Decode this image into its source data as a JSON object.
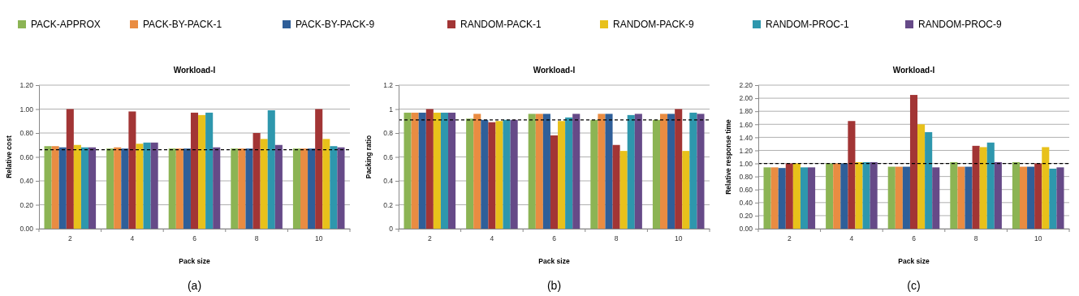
{
  "chart_data": [
    {
      "type": "bar",
      "title": "Workload-I",
      "xlabel": "Pack size",
      "ylabel": "Relative cost",
      "categories": [
        "2",
        "4",
        "6",
        "8",
        "10"
      ],
      "legend": "top",
      "grid": "y",
      "ylim": [
        0,
        1.2
      ],
      "yticks": [
        {
          "value": 0,
          "label": "0.00"
        },
        {
          "value": 0.2,
          "label": "0.20"
        },
        {
          "value": 0.4,
          "label": "0.40"
        },
        {
          "value": 0.6,
          "label": "0.60"
        },
        {
          "value": 0.8,
          "label": "0.80"
        },
        {
          "value": 1,
          "label": "1.00"
        },
        {
          "value": 1.2,
          "label": "1.20"
        }
      ],
      "ref_lines": [
        {
          "axis": "y",
          "value": 0.66,
          "color": "#000000",
          "line_style": "dashed"
        }
      ],
      "annotations": [
        "(a)"
      ],
      "series": [
        {
          "name": "PACK-APPROX",
          "color": "#8cb454",
          "values": [
            0.69,
            0.67,
            0.67,
            0.67,
            0.67
          ]
        },
        {
          "name": "PACK-BY-PACK-1",
          "color": "#e98c42",
          "values": [
            0.69,
            0.68,
            0.67,
            0.67,
            0.67
          ]
        },
        {
          "name": "PACK-BY-PACK-9",
          "color": "#2f5f99",
          "values": [
            0.68,
            0.67,
            0.67,
            0.67,
            0.67
          ]
        },
        {
          "name": "RANDOM-PACK-1",
          "color": "#a23535",
          "values": [
            1.0,
            0.98,
            0.97,
            0.8,
            1.0
          ]
        },
        {
          "name": "RANDOM-PACK-9",
          "color": "#e8c11b",
          "values": [
            0.7,
            0.71,
            0.95,
            0.75,
            0.75
          ]
        },
        {
          "name": "RANDOM-PROC-1",
          "color": "#2e97ad",
          "values": [
            0.68,
            0.72,
            0.97,
            0.99,
            0.69
          ]
        },
        {
          "name": "RANDOM-PROC-9",
          "color": "#664a88",
          "values": [
            0.68,
            0.72,
            0.68,
            0.7,
            0.68
          ]
        }
      ]
    },
    {
      "type": "bar",
      "title": "Workload-I",
      "xlabel": "Pack size",
      "ylabel": "Packing ratio",
      "categories": [
        "2",
        "4",
        "6",
        "8",
        "10"
      ],
      "grid": "y",
      "ylim": [
        0,
        1.2
      ],
      "yticks": [
        0,
        0.2,
        0.4,
        0.6,
        0.8,
        1,
        1.2
      ],
      "ref_lines": [
        {
          "axis": "y",
          "value": 0.91,
          "color": "#000000",
          "line_style": "dashed"
        }
      ],
      "annotations": [
        "(b)"
      ],
      "series": [
        {
          "color": "#8cb454",
          "values": [
            0.97,
            0.92,
            0.96,
            0.91,
            0.91
          ]
        },
        {
          "color": "#e98c42",
          "values": [
            0.97,
            0.96,
            0.96,
            0.96,
            0.96
          ]
        },
        {
          "color": "#2f5f99",
          "values": [
            0.97,
            0.91,
            0.96,
            0.96,
            0.96
          ]
        },
        {
          "color": "#a23535",
          "values": [
            1.0,
            0.89,
            0.78,
            0.7,
            1.0
          ]
        },
        {
          "color": "#e8c11b",
          "values": [
            0.97,
            0.9,
            0.9,
            0.65,
            0.65
          ]
        },
        {
          "color": "#2e97ad",
          "values": [
            0.97,
            0.91,
            0.93,
            0.95,
            0.97
          ]
        },
        {
          "color": "#664a88",
          "values": [
            0.97,
            0.91,
            0.96,
            0.96,
            0.96
          ]
        }
      ]
    },
    {
      "type": "bar",
      "title": "Workload-I",
      "xlabel": "Pack size",
      "ylabel": "Relative response time",
      "categories": [
        "2",
        "4",
        "6",
        "8",
        "10"
      ],
      "grid": "y",
      "ylim": [
        0,
        2.2
      ],
      "yticks": [
        {
          "value": 0,
          "label": "0.00"
        },
        {
          "value": 0.2,
          "label": "0.20"
        },
        {
          "value": 0.4,
          "label": "0.40"
        },
        {
          "value": 0.6,
          "label": "0.60"
        },
        {
          "value": 0.8,
          "label": "0.80"
        },
        {
          "value": 1,
          "label": "1.00"
        },
        {
          "value": 1.2,
          "label": "1.20"
        },
        {
          "value": 1.4,
          "label": "1.40"
        },
        {
          "value": 1.6,
          "label": "1.60"
        },
        {
          "value": 1.8,
          "label": "1.80"
        },
        {
          "value": 2,
          "label": "2.00"
        },
        {
          "value": 2.2,
          "label": "2.20"
        }
      ],
      "ref_lines": [
        {
          "axis": "y",
          "value": 1.0,
          "color": "#000000",
          "line_style": "dashed"
        }
      ],
      "annotations": [
        "(c)"
      ],
      "series": [
        {
          "color": "#8cb454",
          "values": [
            0.94,
            1.0,
            0.95,
            1.02,
            1.02
          ]
        },
        {
          "color": "#e98c42",
          "values": [
            0.94,
            1.0,
            0.95,
            0.95,
            0.95
          ]
        },
        {
          "color": "#2f5f99",
          "values": [
            0.93,
            1.0,
            0.95,
            0.95,
            0.95
          ]
        },
        {
          "color": "#a23535",
          "values": [
            1.0,
            1.65,
            2.05,
            1.27,
            1.0
          ]
        },
        {
          "color": "#e8c11b",
          "values": [
            1.0,
            1.02,
            1.6,
            1.25,
            1.25
          ]
        },
        {
          "color": "#2e97ad",
          "values": [
            0.94,
            1.02,
            1.48,
            1.32,
            0.92
          ]
        },
        {
          "color": "#664a88",
          "values": [
            0.94,
            1.02,
            0.94,
            1.02,
            0.94
          ]
        }
      ]
    }
  ]
}
